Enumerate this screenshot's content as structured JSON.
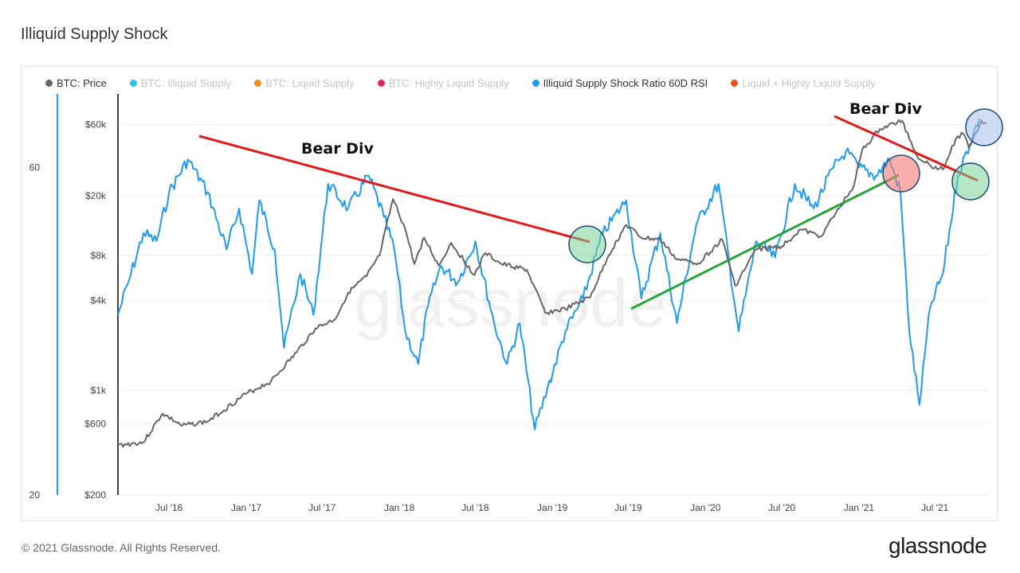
{
  "title": "Illiquid Supply Shock",
  "legend": [
    {
      "label": "BTC: Price",
      "color": "#666666",
      "active": true
    },
    {
      "label": "BTC: Illiquid Supply",
      "color": "#2dc4e6",
      "active": false
    },
    {
      "label": "BTC: Liquid Supply",
      "color": "#f28a1f",
      "active": false
    },
    {
      "label": "BTC: Highly Liquid Supply",
      "color": "#e0245e",
      "active": false
    },
    {
      "label": "Illiquid Supply Shock Ratio 60D RSI",
      "color": "#1e9bef",
      "active": true
    },
    {
      "label": "Liquid + Highly Liquid Supply",
      "color": "#e8541e",
      "active": false
    }
  ],
  "footer": {
    "copyright": "© 2021 Glassnode. All Rights Reserved.",
    "brand": "glassnode"
  },
  "watermark": "glassnode",
  "chart_data": {
    "type": "line",
    "x_ticks": [
      "Jul '16",
      "Jan '17",
      "Jul '17",
      "Jan '18",
      "Jul '18",
      "Jan '19",
      "Jul '19",
      "Jan '20",
      "Jul '20",
      "Jan '21",
      "Jul '21"
    ],
    "y_price_ticks": [
      "$60k",
      "$20k",
      "$8k",
      "$4k",
      "$1k",
      "$600",
      "$200"
    ],
    "y_rsi_ticks": [
      "60",
      "20"
    ],
    "price_scale": "log",
    "series": [
      {
        "name": "BTC: Price",
        "color": "#666666",
        "values": [
          [
            "2016-03-01",
            430
          ],
          [
            "2016-05-01",
            450
          ],
          [
            "2016-06-15",
            700
          ],
          [
            "2016-08-01",
            580
          ],
          [
            "2016-10-01",
            620
          ],
          [
            "2017-01-01",
            950
          ],
          [
            "2017-03-01",
            1150
          ],
          [
            "2017-05-01",
            1800
          ],
          [
            "2017-06-15",
            2600
          ],
          [
            "2017-08-01",
            3000
          ],
          [
            "2017-09-01",
            4500
          ],
          [
            "2017-10-15",
            5800
          ],
          [
            "2017-11-15",
            8000
          ],
          [
            "2017-12-17",
            19000
          ],
          [
            "2018-01-15",
            12000
          ],
          [
            "2018-02-06",
            7000
          ],
          [
            "2018-03-01",
            10500
          ],
          [
            "2018-04-05",
            6800
          ],
          [
            "2018-05-05",
            9700
          ],
          [
            "2018-06-29",
            5900
          ],
          [
            "2018-07-25",
            8300
          ],
          [
            "2018-09-01",
            7000
          ],
          [
            "2018-11-01",
            6400
          ],
          [
            "2018-12-15",
            3300
          ],
          [
            "2019-02-01",
            3500
          ],
          [
            "2019-04-01",
            4200
          ],
          [
            "2019-05-15",
            8000
          ],
          [
            "2019-06-26",
            12800
          ],
          [
            "2019-08-01",
            10500
          ],
          [
            "2019-09-15",
            10200
          ],
          [
            "2019-10-25",
            7500
          ],
          [
            "2019-12-15",
            7100
          ],
          [
            "2020-02-10",
            10200
          ],
          [
            "2020-03-12",
            5000
          ],
          [
            "2020-05-01",
            8800
          ],
          [
            "2020-07-01",
            9200
          ],
          [
            "2020-08-15",
            11900
          ],
          [
            "2020-10-01",
            10700
          ],
          [
            "2020-11-15",
            16500
          ],
          [
            "2020-12-20",
            23500
          ],
          [
            "2021-01-08",
            40000
          ],
          [
            "2021-02-20",
            56000
          ],
          [
            "2021-04-14",
            63500
          ],
          [
            "2021-05-19",
            37000
          ],
          [
            "2021-06-20",
            32000
          ],
          [
            "2021-07-20",
            30000
          ],
          [
            "2021-08-20",
            48000
          ],
          [
            "2021-09-07",
            52000
          ],
          [
            "2021-09-20",
            42000
          ],
          [
            "2021-10-20",
            64000
          ],
          [
            "2021-11-01",
            61000
          ]
        ]
      },
      {
        "name": "Illiquid Supply Shock Ratio 60D RSI",
        "color": "#1e9bef",
        "values": [
          [
            "2016-03-01",
            42
          ],
          [
            "2016-04-01",
            47
          ],
          [
            "2016-05-01",
            52
          ],
          [
            "2016-06-01",
            51
          ],
          [
            "2016-07-01",
            57
          ],
          [
            "2016-08-15",
            61
          ],
          [
            "2016-10-01",
            57
          ],
          [
            "2016-11-15",
            50
          ],
          [
            "2016-12-15",
            55
          ],
          [
            "2017-01-15",
            47
          ],
          [
            "2017-02-01",
            56
          ],
          [
            "2017-03-10",
            50
          ],
          [
            "2017-04-01",
            38
          ],
          [
            "2017-05-10",
            47
          ],
          [
            "2017-06-10",
            42
          ],
          [
            "2017-07-15",
            58
          ],
          [
            "2017-09-01",
            55
          ],
          [
            "2017-10-20",
            59
          ],
          [
            "2017-11-25",
            54
          ],
          [
            "2017-12-20",
            50
          ],
          [
            "2018-01-15",
            40
          ],
          [
            "2018-02-15",
            36
          ],
          [
            "2018-03-10",
            43
          ],
          [
            "2018-04-10",
            48
          ],
          [
            "2018-05-20",
            46
          ],
          [
            "2018-07-01",
            51
          ],
          [
            "2018-08-15",
            41
          ],
          [
            "2018-09-15",
            36
          ],
          [
            "2018-10-15",
            41
          ],
          [
            "2018-11-20",
            28
          ],
          [
            "2018-12-20",
            33
          ],
          [
            "2019-02-01",
            40
          ],
          [
            "2019-03-15",
            44
          ],
          [
            "2019-05-01",
            52
          ],
          [
            "2019-06-26",
            56
          ],
          [
            "2019-08-01",
            44
          ],
          [
            "2019-09-15",
            52
          ],
          [
            "2019-10-25",
            41
          ],
          [
            "2019-12-10",
            53
          ],
          [
            "2020-02-01",
            58
          ],
          [
            "2020-03-20",
            40
          ],
          [
            "2020-05-01",
            51
          ],
          [
            "2020-06-15",
            49
          ],
          [
            "2020-08-01",
            58
          ],
          [
            "2020-09-15",
            55
          ],
          [
            "2020-11-01",
            60
          ],
          [
            "2020-12-01",
            62
          ],
          [
            "2021-01-01",
            60
          ],
          [
            "2021-02-10",
            59
          ],
          [
            "2021-03-15",
            61
          ],
          [
            "2021-04-10",
            57
          ],
          [
            "2021-05-01",
            40
          ],
          [
            "2021-05-25",
            31
          ],
          [
            "2021-06-20",
            43
          ],
          [
            "2021-07-20",
            47
          ],
          [
            "2021-08-25",
            59
          ],
          [
            "2021-09-30",
            64
          ],
          [
            "2021-10-15",
            66
          ]
        ]
      }
    ],
    "annotations": [
      {
        "text": "Bear Div"
      },
      {
        "text": "Bear Div"
      }
    ]
  }
}
